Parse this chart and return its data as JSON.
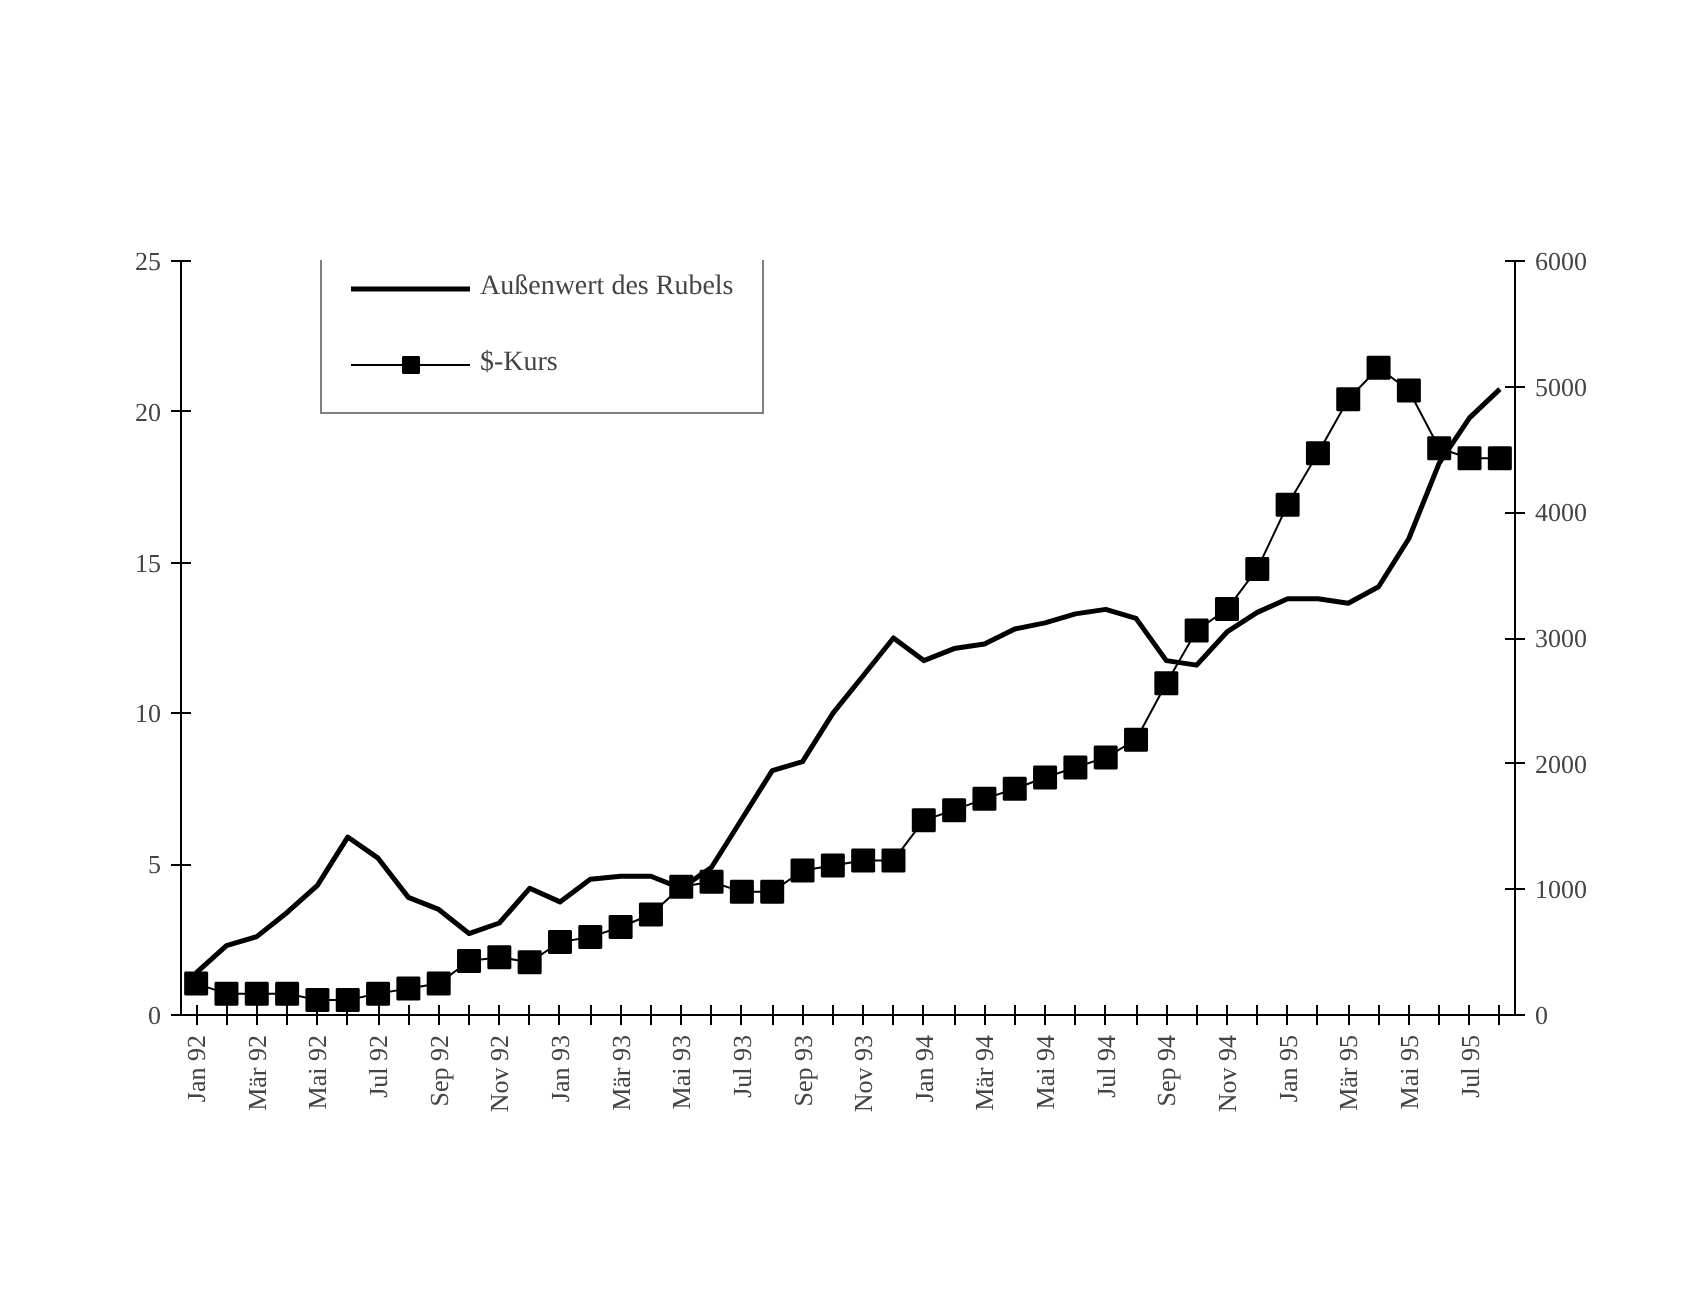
{
  "chart_data": {
    "type": "line",
    "categories": [
      "Jan 92",
      null,
      "Mär 92",
      null,
      "Mai 92",
      null,
      "Jul 92",
      null,
      "Sep 92",
      null,
      "Nov 92",
      null,
      "Jan 93",
      null,
      "Mär 93",
      null,
      "Mai 93",
      null,
      "Jul 93",
      null,
      "Sep 93",
      null,
      "Nov 93",
      null,
      "Jan 94",
      null,
      "Mär 94",
      null,
      "Mai 94",
      null,
      "Jul 94",
      null,
      "Sep 94",
      null,
      "Nov 94",
      null,
      "Jan 95",
      null,
      "Mär 95",
      null,
      "Mai 95",
      null,
      "Jul 95",
      null
    ],
    "series": [
      {
        "name": "Außenwert des Rubels",
        "color": "#000000",
        "marker": "none",
        "values": [
          1.4,
          2.3,
          2.6,
          3.4,
          4.3,
          5.9,
          5.2,
          3.9,
          3.5,
          2.7,
          3.05,
          4.2,
          3.75,
          4.5,
          4.6,
          4.6,
          4.2,
          4.9,
          6.5,
          8.1,
          8.4,
          10.0,
          11.25,
          12.5,
          11.75,
          12.15,
          12.3,
          12.8,
          13.0,
          13.3,
          13.45,
          13.15,
          11.75,
          11.6,
          12.7,
          13.35,
          13.8,
          13.8,
          13.65,
          14.2,
          15.8,
          18.3,
          19.8,
          20.75
        ]
      },
      {
        "name": "$-Kurs",
        "color": "#000000",
        "marker": "square",
        "axis": "y2",
        "values": [
          250,
          170,
          170,
          170,
          120,
          120,
          170,
          210,
          250,
          430,
          460,
          420,
          580,
          620,
          700,
          800,
          1020,
          1060,
          980,
          980,
          1150,
          1190,
          1230,
          1230,
          1550,
          1630,
          1720,
          1800,
          1890,
          1970,
          2050,
          2190,
          2640,
          3060,
          3230,
          3550,
          4060,
          4470,
          4900,
          5150,
          4970,
          4510,
          4430,
          4430
        ]
      }
    ],
    "ylim": [
      0,
      25
    ],
    "yticks": [
      0,
      5,
      10,
      15,
      20,
      25
    ],
    "y2lim": [
      0,
      6000
    ],
    "y2ticks": [
      0,
      1000,
      2000,
      3000,
      4000,
      5000,
      6000
    ],
    "grid": false,
    "legend": "top left"
  }
}
